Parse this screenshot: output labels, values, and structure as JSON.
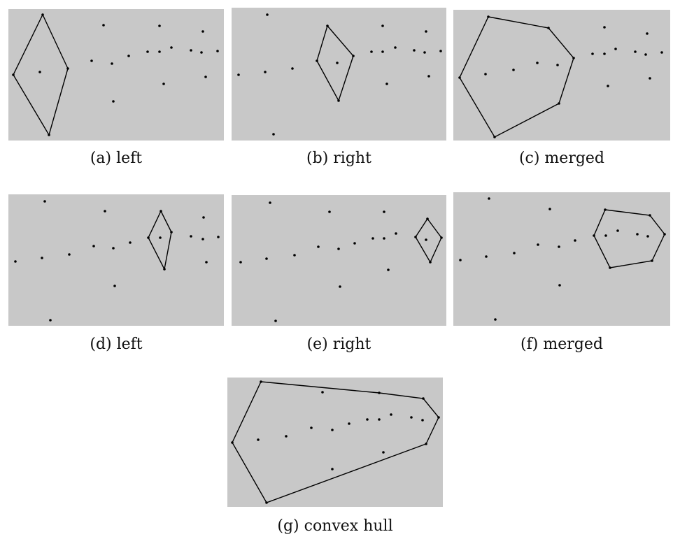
{
  "figure": {
    "style": {
      "background": "#c8c8c8",
      "point_color": "#000000",
      "line_color": "#000000",
      "page_background": "#ffffff"
    },
    "panels": [
      {
        "id": "a",
        "caption": "(a) left",
        "points": [
          [
            19,
            107
          ],
          [
            61,
            21
          ],
          [
            57,
            103
          ],
          [
            97,
            98
          ],
          [
            70,
            193
          ],
          [
            148,
            36
          ],
          [
            131,
            87
          ],
          [
            160,
            91
          ],
          [
            184,
            80
          ],
          [
            162,
            145
          ],
          [
            211,
            74
          ],
          [
            228,
            37
          ],
          [
            228,
            74
          ],
          [
            245,
            68
          ],
          [
            234,
            120
          ],
          [
            273,
            72
          ],
          [
            290,
            45
          ],
          [
            288,
            75
          ],
          [
            311,
            73
          ],
          [
            294,
            110
          ]
        ],
        "hulls": [
          [
            [
              61,
              21
            ],
            [
              97,
              98
            ],
            [
              70,
              193
            ],
            [
              19,
              107
            ]
          ]
        ]
      },
      {
        "id": "b",
        "caption": "(b) right",
        "points": [
          [
            382,
            21
          ],
          [
            341,
            107
          ],
          [
            379,
            103
          ],
          [
            418,
            98
          ],
          [
            391,
            192
          ],
          [
            468,
            37
          ],
          [
            453,
            87
          ],
          [
            482,
            90
          ],
          [
            505,
            80
          ],
          [
            484,
            144
          ],
          [
            531,
            74
          ],
          [
            547,
            37
          ],
          [
            547,
            74
          ],
          [
            565,
            68
          ],
          [
            553,
            120
          ],
          [
            592,
            72
          ],
          [
            609,
            45
          ],
          [
            607,
            75
          ],
          [
            630,
            73
          ],
          [
            613,
            109
          ]
        ],
        "hulls": [
          [
            [
              468,
              37
            ],
            [
              505,
              80
            ],
            [
              484,
              144
            ],
            [
              453,
              87
            ]
          ]
        ]
      },
      {
        "id": "c",
        "caption": "(c) merged",
        "points": [
          [
            698,
            24
          ],
          [
            657,
            111
          ],
          [
            694,
            106
          ],
          [
            734,
            100
          ],
          [
            707,
            196
          ],
          [
            784,
            40
          ],
          [
            768,
            90
          ],
          [
            797,
            93
          ],
          [
            820,
            83
          ],
          [
            799,
            148
          ],
          [
            847,
            77
          ],
          [
            864,
            39
          ],
          [
            864,
            77
          ],
          [
            880,
            70
          ],
          [
            869,
            123
          ],
          [
            908,
            74
          ],
          [
            925,
            48
          ],
          [
            923,
            78
          ],
          [
            946,
            75
          ],
          [
            929,
            112
          ]
        ],
        "hulls": [
          [
            [
              698,
              24
            ],
            [
              784,
              40
            ],
            [
              820,
              83
            ],
            [
              799,
              148
            ],
            [
              707,
              196
            ],
            [
              657,
              111
            ]
          ]
        ]
      },
      {
        "id": "d",
        "caption": "(d) left",
        "points": [
          [
            64,
            288
          ],
          [
            22,
            374
          ],
          [
            60,
            369
          ],
          [
            99,
            364
          ],
          [
            72,
            458
          ],
          [
            150,
            302
          ],
          [
            134,
            352
          ],
          [
            162,
            355
          ],
          [
            186,
            347
          ],
          [
            164,
            409
          ],
          [
            212,
            340
          ],
          [
            230,
            302
          ],
          [
            229,
            340
          ],
          [
            245,
            332
          ],
          [
            235,
            385
          ],
          [
            273,
            338
          ],
          [
            291,
            311
          ],
          [
            290,
            342
          ],
          [
            312,
            339
          ],
          [
            295,
            375
          ]
        ],
        "hulls": [
          [
            [
              230,
              302
            ],
            [
              245,
              332
            ],
            [
              235,
              385
            ],
            [
              212,
              340
            ]
          ]
        ]
      },
      {
        "id": "e",
        "caption": "(e) right",
        "points": [
          [
            386,
            290
          ],
          [
            344,
            375
          ],
          [
            381,
            370
          ],
          [
            421,
            365
          ],
          [
            394,
            459
          ],
          [
            471,
            303
          ],
          [
            455,
            353
          ],
          [
            484,
            356
          ],
          [
            507,
            348
          ],
          [
            486,
            410
          ],
          [
            533,
            341
          ],
          [
            549,
            303
          ],
          [
            549,
            341
          ],
          [
            566,
            334
          ],
          [
            555,
            386
          ],
          [
            594,
            339
          ],
          [
            611,
            313
          ],
          [
            609,
            343
          ],
          [
            631,
            340
          ],
          [
            615,
            375
          ]
        ],
        "hulls": [
          [
            [
              611,
              313
            ],
            [
              631,
              340
            ],
            [
              615,
              375
            ],
            [
              594,
              339
            ]
          ]
        ]
      },
      {
        "id": "f",
        "caption": "(f) merged",
        "points": [
          [
            699,
            284
          ],
          [
            658,
            372
          ],
          [
            695,
            367
          ],
          [
            735,
            362
          ],
          [
            708,
            457
          ],
          [
            786,
            299
          ],
          [
            769,
            350
          ],
          [
            799,
            353
          ],
          [
            822,
            344
          ],
          [
            800,
            408
          ],
          [
            849,
            337
          ],
          [
            865,
            300
          ],
          [
            866,
            337
          ],
          [
            883,
            330
          ],
          [
            872,
            383
          ],
          [
            911,
            335
          ],
          [
            929,
            308
          ],
          [
            926,
            338
          ],
          [
            950,
            335
          ],
          [
            932,
            373
          ]
        ],
        "hulls": [
          [
            [
              865,
              300
            ],
            [
              929,
              308
            ],
            [
              950,
              335
            ],
            [
              932,
              373
            ],
            [
              872,
              383
            ],
            [
              849,
              337
            ]
          ]
        ]
      },
      {
        "id": "g",
        "caption": "(g) convex hull",
        "points": [
          [
            373,
            546
          ],
          [
            332,
            633
          ],
          [
            369,
            629
          ],
          [
            409,
            624
          ],
          [
            381,
            719
          ],
          [
            461,
            561
          ],
          [
            445,
            612
          ],
          [
            475,
            615
          ],
          [
            499,
            606
          ],
          [
            475,
            671
          ],
          [
            525,
            600
          ],
          [
            542,
            562
          ],
          [
            542,
            600
          ],
          [
            559,
            593
          ],
          [
            548,
            647
          ],
          [
            588,
            597
          ],
          [
            605,
            570
          ],
          [
            604,
            601
          ],
          [
            627,
            597
          ],
          [
            609,
            635
          ]
        ],
        "hulls": [
          [
            [
              373,
              546
            ],
            [
              542,
              562
            ],
            [
              605,
              570
            ],
            [
              627,
              597
            ],
            [
              609,
              635
            ],
            [
              381,
              719
            ],
            [
              332,
              633
            ]
          ]
        ]
      }
    ]
  }
}
